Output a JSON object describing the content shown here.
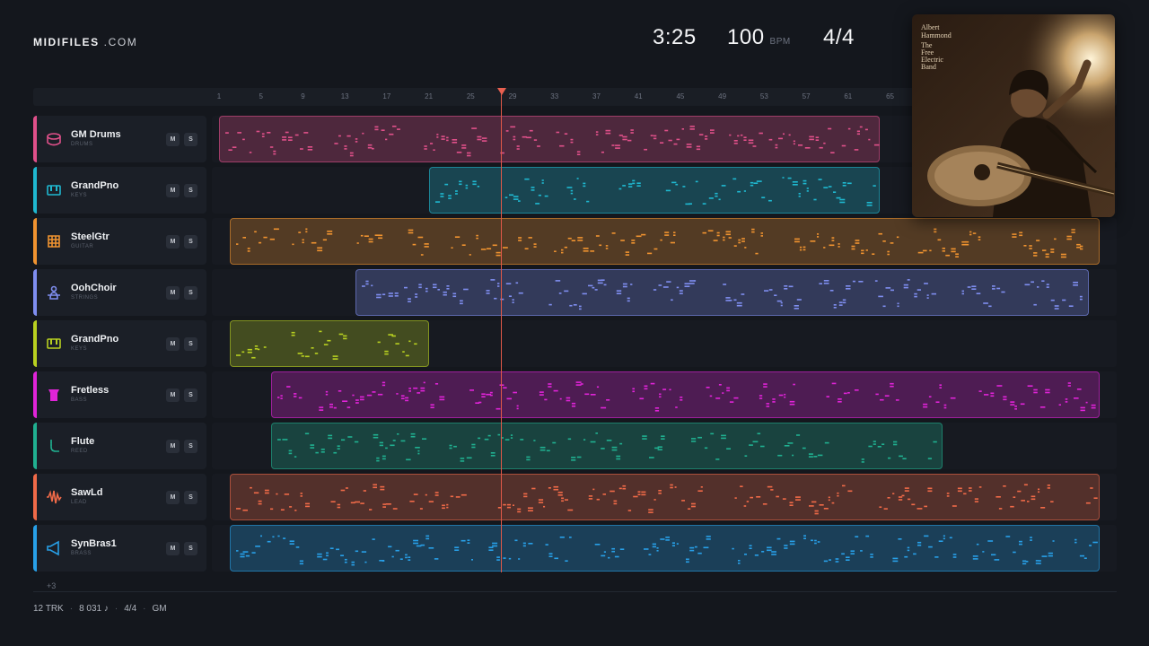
{
  "brand": {
    "name_bold": "MIDIFILES",
    "name_light": ".COM"
  },
  "transport": {
    "time": "3:25",
    "tempo": "100",
    "tempo_unit": "BPM",
    "signature": "4/4"
  },
  "ruler": {
    "bars": [
      "1",
      "5",
      "9",
      "13",
      "17",
      "21",
      "25",
      "29",
      "33",
      "37",
      "41",
      "45",
      "49",
      "53",
      "57",
      "61",
      "65"
    ]
  },
  "album": {
    "artist_line1": "Albert",
    "artist_line2": "Hammond",
    "title_line1": "The",
    "title_line2": "Free",
    "title_line3": "Electric",
    "title_line4": "Band"
  },
  "tracks": [
    {
      "name": "GM Drums",
      "category": "DRUMS",
      "color": "#e0508a",
      "icon": "drum-icon",
      "mute": "M",
      "solo": "S",
      "regions": [
        [
          1,
          64
        ]
      ]
    },
    {
      "name": "GrandPno",
      "category": "KEYS",
      "color": "#1fb8d0",
      "icon": "piano-icon",
      "mute": "M",
      "solo": "S",
      "regions": [
        [
          21,
          64
        ]
      ]
    },
    {
      "name": "SteelGtr",
      "category": "GUITAR",
      "color": "#f09330",
      "icon": "guitar-icon",
      "mute": "M",
      "solo": "S",
      "regions": [
        [
          2,
          85
        ]
      ]
    },
    {
      "name": "OohChoir",
      "category": "STRINGS",
      "color": "#7f8ef0",
      "icon": "choir-icon",
      "mute": "M",
      "solo": "S",
      "regions": [
        [
          14,
          84
        ]
      ]
    },
    {
      "name": "GrandPno",
      "category": "KEYS",
      "color": "#b8d020",
      "icon": "piano-icon",
      "mute": "M",
      "solo": "S",
      "regions": [
        [
          2,
          21
        ]
      ]
    },
    {
      "name": "Fretless",
      "category": "BASS",
      "color": "#e024d8",
      "icon": "bass-icon",
      "mute": "M",
      "solo": "S",
      "regions": [
        [
          6,
          85
        ]
      ]
    },
    {
      "name": "Flute",
      "category": "REED",
      "color": "#20b090",
      "icon": "flute-icon",
      "mute": "M",
      "solo": "S",
      "regions": [
        [
          6,
          70
        ]
      ]
    },
    {
      "name": "SawLd",
      "category": "LEAD",
      "color": "#f06a48",
      "icon": "waveform-icon",
      "mute": "M",
      "solo": "S",
      "regions": [
        [
          2,
          85
        ]
      ]
    },
    {
      "name": "SynBras1",
      "category": "BRASS",
      "color": "#28a0e8",
      "icon": "horn-icon",
      "mute": "M",
      "solo": "S",
      "regions": [
        [
          2,
          85
        ]
      ]
    }
  ],
  "more_tracks": "+3",
  "footer": {
    "tracks": "12 TRK",
    "notes": "8 031 ♪",
    "signature": "4/4",
    "standard": "GM"
  },
  "playhead_bar": 27
}
